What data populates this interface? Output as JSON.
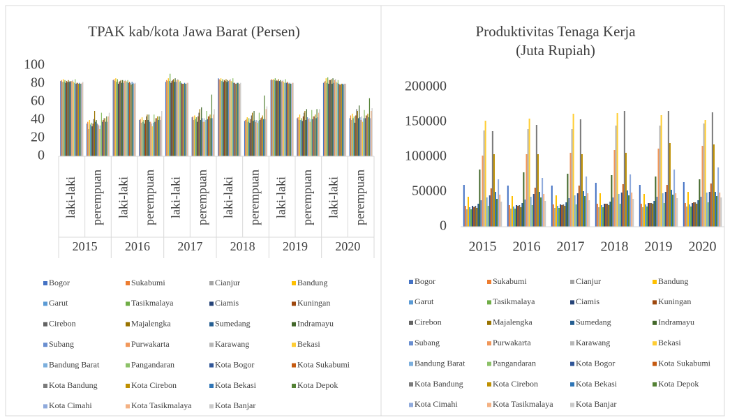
{
  "chart_data": [
    {
      "type": "bar",
      "title": "TPAK kab/kota Jawa Barat (Persen)",
      "categories": [
        "laki-laki",
        "perempuan",
        "laki-laki",
        "perempuan",
        "laki-laki",
        "perempuan",
        "laki-laki",
        "perempuan",
        "laki-laki",
        "perempuan",
        "laki-laki",
        "perempuan"
      ],
      "category_groups": [
        "2015",
        "2016",
        "2017",
        "2018",
        "2019",
        "2020"
      ],
      "ylim": [
        0,
        100
      ],
      "yticks": [
        0,
        20,
        40,
        60,
        80,
        100
      ],
      "legend": "bottom",
      "series": [
        {
          "name": "Bogor",
          "color": "#4472C4",
          "values": [
            83,
            36,
            84,
            40,
            82,
            43,
            86,
            39,
            84,
            42,
            81,
            42
          ]
        },
        {
          "name": "Sukabumi",
          "color": "#ED7D31",
          "values": [
            84,
            38,
            85,
            41,
            84,
            44,
            85,
            40,
            85,
            43,
            82,
            45
          ]
        },
        {
          "name": "Cianjur",
          "color": "#A5A5A5",
          "values": [
            82,
            30,
            83,
            37,
            83,
            40,
            84,
            41,
            84,
            40,
            83,
            40
          ]
        },
        {
          "name": "Bandung",
          "color": "#FFC000",
          "values": [
            85,
            40,
            86,
            43,
            86,
            45,
            86,
            43,
            85,
            46,
            86,
            47
          ]
        },
        {
          "name": "Garut",
          "color": "#5B9BD5",
          "values": [
            82,
            35,
            82,
            38,
            83,
            41,
            83,
            38,
            84,
            40,
            81,
            42
          ]
        },
        {
          "name": "Tasikmalaya",
          "color": "#70AD47",
          "values": [
            84,
            37,
            85,
            40,
            91,
            43,
            85,
            42,
            86,
            42,
            87,
            44
          ]
        },
        {
          "name": "Ciamis",
          "color": "#264478",
          "values": [
            81,
            33,
            80,
            36,
            81,
            38,
            82,
            37,
            83,
            39,
            80,
            37
          ]
        },
        {
          "name": "Kuningan",
          "color": "#9E480E",
          "values": [
            83,
            36,
            82,
            40,
            83,
            44,
            84,
            41,
            84,
            44,
            84,
            45
          ]
        },
        {
          "name": "Cirebon",
          "color": "#636363",
          "values": [
            82,
            41,
            83,
            44,
            84,
            48,
            83,
            45,
            83,
            48,
            84,
            52
          ]
        },
        {
          "name": "Majalengka",
          "color": "#997300",
          "values": [
            84,
            50,
            84,
            46,
            85,
            52,
            85,
            48,
            85,
            50,
            85,
            50
          ]
        },
        {
          "name": "Sumedang",
          "color": "#255E91",
          "values": [
            82,
            38,
            81,
            40,
            82,
            40,
            82,
            39,
            83,
            40,
            80,
            42
          ]
        },
        {
          "name": "Indramayu",
          "color": "#43682B",
          "values": [
            83,
            40,
            84,
            46,
            86,
            54,
            84,
            50,
            84,
            52,
            86,
            56
          ]
        },
        {
          "name": "Subang",
          "color": "#698ED0",
          "values": [
            82,
            36,
            81,
            38,
            82,
            42,
            83,
            40,
            82,
            43,
            81,
            43
          ]
        },
        {
          "name": "Purwakarta",
          "color": "#F1975A",
          "values": [
            83,
            35,
            83,
            38,
            84,
            38,
            84,
            38,
            83,
            41,
            84,
            40
          ]
        },
        {
          "name": "Karawang",
          "color": "#B7B7B7",
          "values": [
            84,
            34,
            84,
            36,
            85,
            42,
            85,
            40,
            84,
            42,
            85,
            44
          ]
        },
        {
          "name": "Bekasi",
          "color": "#FFCD33",
          "values": [
            82,
            30,
            83,
            33,
            84,
            38,
            83,
            37,
            82,
            38,
            82,
            38
          ]
        },
        {
          "name": "Bandung Barat",
          "color": "#7CAFDD",
          "values": [
            81,
            34,
            82,
            37,
            82,
            40,
            82,
            39,
            81,
            41,
            81,
            42
          ]
        },
        {
          "name": "Pangandaran",
          "color": "#8CC168",
          "values": [
            85,
            48,
            84,
            46,
            83,
            50,
            86,
            48,
            85,
            51,
            84,
            51
          ]
        },
        {
          "name": "Kota Bogor",
          "color": "#2F5597",
          "values": [
            80,
            38,
            81,
            38,
            81,
            41,
            81,
            40,
            81,
            41,
            80,
            42
          ]
        },
        {
          "name": "Kota Sukabumi",
          "color": "#C55A11",
          "values": [
            81,
            40,
            82,
            42,
            80,
            44,
            81,
            42,
            82,
            44,
            79,
            45
          ]
        },
        {
          "name": "Kota Bandung",
          "color": "#7B7B7B",
          "values": [
            81,
            42,
            81,
            42,
            80,
            44,
            80,
            43,
            81,
            44,
            79,
            45
          ]
        },
        {
          "name": "Kota Cirebon",
          "color": "#BF9000",
          "values": [
            80,
            42,
            79,
            44,
            80,
            46,
            80,
            45,
            80,
            46,
            80,
            47
          ]
        },
        {
          "name": "Kota Bekasi",
          "color": "#2E75B6",
          "values": [
            81,
            38,
            82,
            40,
            81,
            42,
            81,
            41,
            81,
            42,
            80,
            43
          ]
        },
        {
          "name": "Kota Depok",
          "color": "#548235",
          "values": [
            80,
            44,
            80,
            44,
            80,
            68,
            81,
            67,
            80,
            52,
            79,
            64
          ]
        },
        {
          "name": "Kota Cimahi",
          "color": "#8FAADC",
          "values": [
            80,
            38,
            81,
            40,
            80,
            42,
            80,
            41,
            80,
            43,
            80,
            42
          ]
        },
        {
          "name": "Kota Tasikmalaya",
          "color": "#F4B183",
          "values": [
            81,
            44,
            80,
            44,
            81,
            46,
            80,
            52,
            81,
            48,
            80,
            50
          ]
        },
        {
          "name": "Kota Banjar",
          "color": "#C9C9C9",
          "values": [
            82,
            48,
            81,
            50,
            81,
            52,
            81,
            55,
            81,
            52,
            80,
            53
          ]
        }
      ]
    },
    {
      "type": "bar",
      "title": [
        "Produktivitas Tenaga Kerja",
        "(Juta Rupiah)"
      ],
      "categories": [
        "2015",
        "2016",
        "2017",
        "2018",
        "2019",
        "2020"
      ],
      "ylim": [
        0,
        200000
      ],
      "yticks": [
        0,
        50000,
        100000,
        150000,
        200000
      ],
      "legend": "bottom",
      "series": [
        {
          "name": "Bogor",
          "color": "#4472C4",
          "values": [
            60000,
            59000,
            59000,
            63000,
            60000,
            64000
          ]
        },
        {
          "name": "Sukabumi",
          "color": "#ED7D31",
          "values": [
            30000,
            31000,
            32000,
            33000,
            33000,
            34000
          ]
        },
        {
          "name": "Cianjur",
          "color": "#A5A5A5",
          "values": [
            25000,
            26000,
            27000,
            28000,
            28000,
            29000
          ]
        },
        {
          "name": "Bandung",
          "color": "#FFC000",
          "values": [
            43000,
            44000,
            45000,
            48000,
            47000,
            50000
          ]
        },
        {
          "name": "Garut",
          "color": "#5B9BD5",
          "values": [
            28000,
            29000,
            30000,
            31000,
            32000,
            32000
          ]
        },
        {
          "name": "Tasikmalaya",
          "color": "#70AD47",
          "values": [
            25000,
            26000,
            27000,
            28000,
            29000,
            29000
          ]
        },
        {
          "name": "Ciamis",
          "color": "#264478",
          "values": [
            30000,
            31000,
            32000,
            33000,
            34000,
            34000
          ]
        },
        {
          "name": "Kuningan",
          "color": "#9E480E",
          "values": [
            28000,
            30000,
            31000,
            33000,
            34000,
            35000
          ]
        },
        {
          "name": "Cirebon",
          "color": "#636363",
          "values": [
            30000,
            31000,
            32000,
            33000,
            34000,
            35000
          ]
        },
        {
          "name": "Majalengka",
          "color": "#997300",
          "values": [
            27000,
            28000,
            30000,
            31000,
            33000,
            33000
          ]
        },
        {
          "name": "Sumedang",
          "color": "#255E91",
          "values": [
            33000,
            34000,
            35000,
            36000,
            37000,
            38000
          ]
        },
        {
          "name": "Indramayu",
          "color": "#43682B",
          "values": [
            82000,
            78000,
            76000,
            74000,
            72000,
            68000
          ]
        },
        {
          "name": "Subang",
          "color": "#698ED0",
          "values": [
            38000,
            39000,
            41000,
            42000,
            43000,
            43000
          ]
        },
        {
          "name": "Purwakarta",
          "color": "#F1975A",
          "values": [
            102000,
            104000,
            106000,
            110000,
            112000,
            116000
          ]
        },
        {
          "name": "Karawang",
          "color": "#B7B7B7",
          "values": [
            138000,
            140000,
            140000,
            145000,
            145000,
            148000
          ]
        },
        {
          "name": "Bekasi",
          "color": "#FFCD33",
          "values": [
            152000,
            155000,
            162000,
            163000,
            160000,
            153000
          ]
        },
        {
          "name": "Bandung Barat",
          "color": "#7CAFDD",
          "values": [
            42000,
            43000,
            45000,
            47000,
            48000,
            49000
          ]
        },
        {
          "name": "Pangandaran",
          "color": "#8CC168",
          "values": [
            30000,
            31000,
            32000,
            33000,
            34000,
            35000
          ]
        },
        {
          "name": "Kota Bogor",
          "color": "#2F5597",
          "values": [
            45000,
            47000,
            48000,
            49000,
            50000,
            50000
          ]
        },
        {
          "name": "Kota Sukabumi",
          "color": "#C55A11",
          "values": [
            55000,
            56000,
            59000,
            61000,
            60000,
            62000
          ]
        },
        {
          "name": "Kota Bandung",
          "color": "#7B7B7B",
          "values": [
            137000,
            146000,
            154000,
            166000,
            166000,
            164000
          ]
        },
        {
          "name": "Kota Cirebon",
          "color": "#BF9000",
          "values": [
            104000,
            104000,
            104000,
            106000,
            120000,
            118000
          ]
        },
        {
          "name": "Kota Bekasi",
          "color": "#2E75B6",
          "values": [
            50000,
            50000,
            51000,
            52000,
            53000,
            50000
          ]
        },
        {
          "name": "Kota Depok",
          "color": "#548235",
          "values": [
            40000,
            42000,
            44000,
            45000,
            46000,
            44000
          ]
        },
        {
          "name": "Kota Cimahi",
          "color": "#8FAADC",
          "values": [
            68000,
            70000,
            72000,
            75000,
            82000,
            85000
          ]
        },
        {
          "name": "Kota Tasikmalaya",
          "color": "#F4B183",
          "values": [
            46000,
            47000,
            48000,
            49000,
            48000,
            49000
          ]
        },
        {
          "name": "Kota Banjar",
          "color": "#C9C9C9",
          "values": [
            36000,
            37000,
            38000,
            40000,
            41000,
            42000
          ]
        }
      ]
    }
  ]
}
